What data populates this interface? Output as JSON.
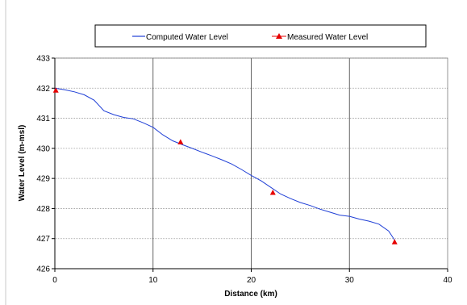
{
  "chart_data": {
    "type": "line",
    "xlabel": "Distance (km)",
    "ylabel": "Water Level (m-msl)",
    "xlim": [
      0,
      40
    ],
    "ylim": [
      426,
      433
    ],
    "x_ticks": [
      "0",
      "10",
      "20",
      "30",
      "40"
    ],
    "y_ticks": [
      "426",
      "427",
      "428",
      "429",
      "430",
      "431",
      "432",
      "433"
    ],
    "grid": "vertical gridlines at major x ticks; horizontal gridlines at major y ticks",
    "legend_position": "top",
    "series": [
      {
        "name": "Computed Water Level",
        "style": "line",
        "color": "#1f3fd6",
        "points": [
          [
            0.0,
            432.0
          ],
          [
            1.0,
            431.95
          ],
          [
            2.0,
            431.88
          ],
          [
            3.0,
            431.78
          ],
          [
            4.0,
            431.6
          ],
          [
            5.0,
            431.25
          ],
          [
            6.0,
            431.12
          ],
          [
            7.0,
            431.03
          ],
          [
            8.0,
            430.98
          ],
          [
            9.0,
            430.85
          ],
          [
            10.0,
            430.7
          ],
          [
            11.0,
            430.45
          ],
          [
            12.0,
            430.25
          ],
          [
            13.0,
            430.12
          ],
          [
            14.0,
            430.0
          ],
          [
            15.0,
            429.87
          ],
          [
            16.0,
            429.75
          ],
          [
            17.0,
            429.62
          ],
          [
            18.0,
            429.48
          ],
          [
            19.0,
            429.3
          ],
          [
            20.0,
            429.1
          ],
          [
            21.0,
            428.92
          ],
          [
            22.0,
            428.7
          ],
          [
            23.0,
            428.48
          ],
          [
            24.0,
            428.33
          ],
          [
            25.0,
            428.2
          ],
          [
            26.0,
            428.1
          ],
          [
            27.0,
            427.98
          ],
          [
            28.0,
            427.88
          ],
          [
            29.0,
            427.78
          ],
          [
            30.0,
            427.74
          ],
          [
            31.0,
            427.65
          ],
          [
            32.0,
            427.58
          ],
          [
            33.0,
            427.48
          ],
          [
            34.0,
            427.25
          ],
          [
            34.6,
            426.95
          ]
        ]
      },
      {
        "name": "Measured Water Level",
        "style": "marker",
        "color": "#e60000",
        "points": [
          [
            0.1,
            431.92
          ],
          [
            12.8,
            430.2
          ],
          [
            22.2,
            428.52
          ],
          [
            34.6,
            426.88
          ]
        ]
      }
    ]
  }
}
